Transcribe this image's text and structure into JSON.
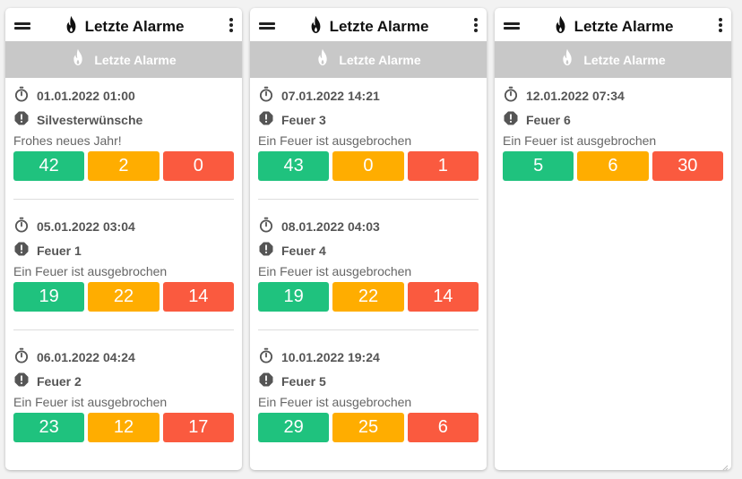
{
  "colors": {
    "green": "#1fc27e",
    "orange": "#ffad00",
    "red": "#fa5a3f",
    "subheader": "#c8c8c8"
  },
  "icons": {
    "menu": "hamburger-icon",
    "logo": "flame-icon",
    "more": "more-vert-icon",
    "time": "timer-icon",
    "alert": "alert-octagon-icon"
  },
  "panels": [
    {
      "title": "Letzte Alarme",
      "subheader": "Letzte Alarme",
      "alarms": [
        {
          "time": "01.01.2022 01:00",
          "name": "Silvesterwünsche",
          "description": "Frohes neues Jahr!",
          "counts": [
            "42",
            "2",
            "0"
          ]
        },
        {
          "time": "05.01.2022 03:04",
          "name": "Feuer 1",
          "description": "Ein Feuer ist ausgebrochen",
          "counts": [
            "19",
            "22",
            "14"
          ]
        },
        {
          "time": "06.01.2022 04:24",
          "name": "Feuer 2",
          "description": "Ein Feuer ist ausgebrochen",
          "counts": [
            "23",
            "12",
            "17"
          ]
        }
      ]
    },
    {
      "title": "Letzte Alarme",
      "subheader": "Letzte Alarme",
      "alarms": [
        {
          "time": "07.01.2022 14:21",
          "name": "Feuer 3",
          "description": "Ein Feuer ist ausgebrochen",
          "counts": [
            "43",
            "0",
            "1"
          ]
        },
        {
          "time": "08.01.2022 04:03",
          "name": "Feuer 4",
          "description": "Ein Feuer ist ausgebrochen",
          "counts": [
            "19",
            "22",
            "14"
          ]
        },
        {
          "time": "10.01.2022 19:24",
          "name": "Feuer 5",
          "description": "Ein Feuer ist ausgebrochen",
          "counts": [
            "29",
            "25",
            "6"
          ]
        }
      ]
    },
    {
      "title": "Letzte Alarme",
      "subheader": "Letzte Alarme",
      "alarms": [
        {
          "time": "12.01.2022 07:34",
          "name": "Feuer 6",
          "description": "Ein Feuer ist ausgebrochen",
          "counts": [
            "5",
            "6",
            "30"
          ]
        }
      ]
    }
  ]
}
